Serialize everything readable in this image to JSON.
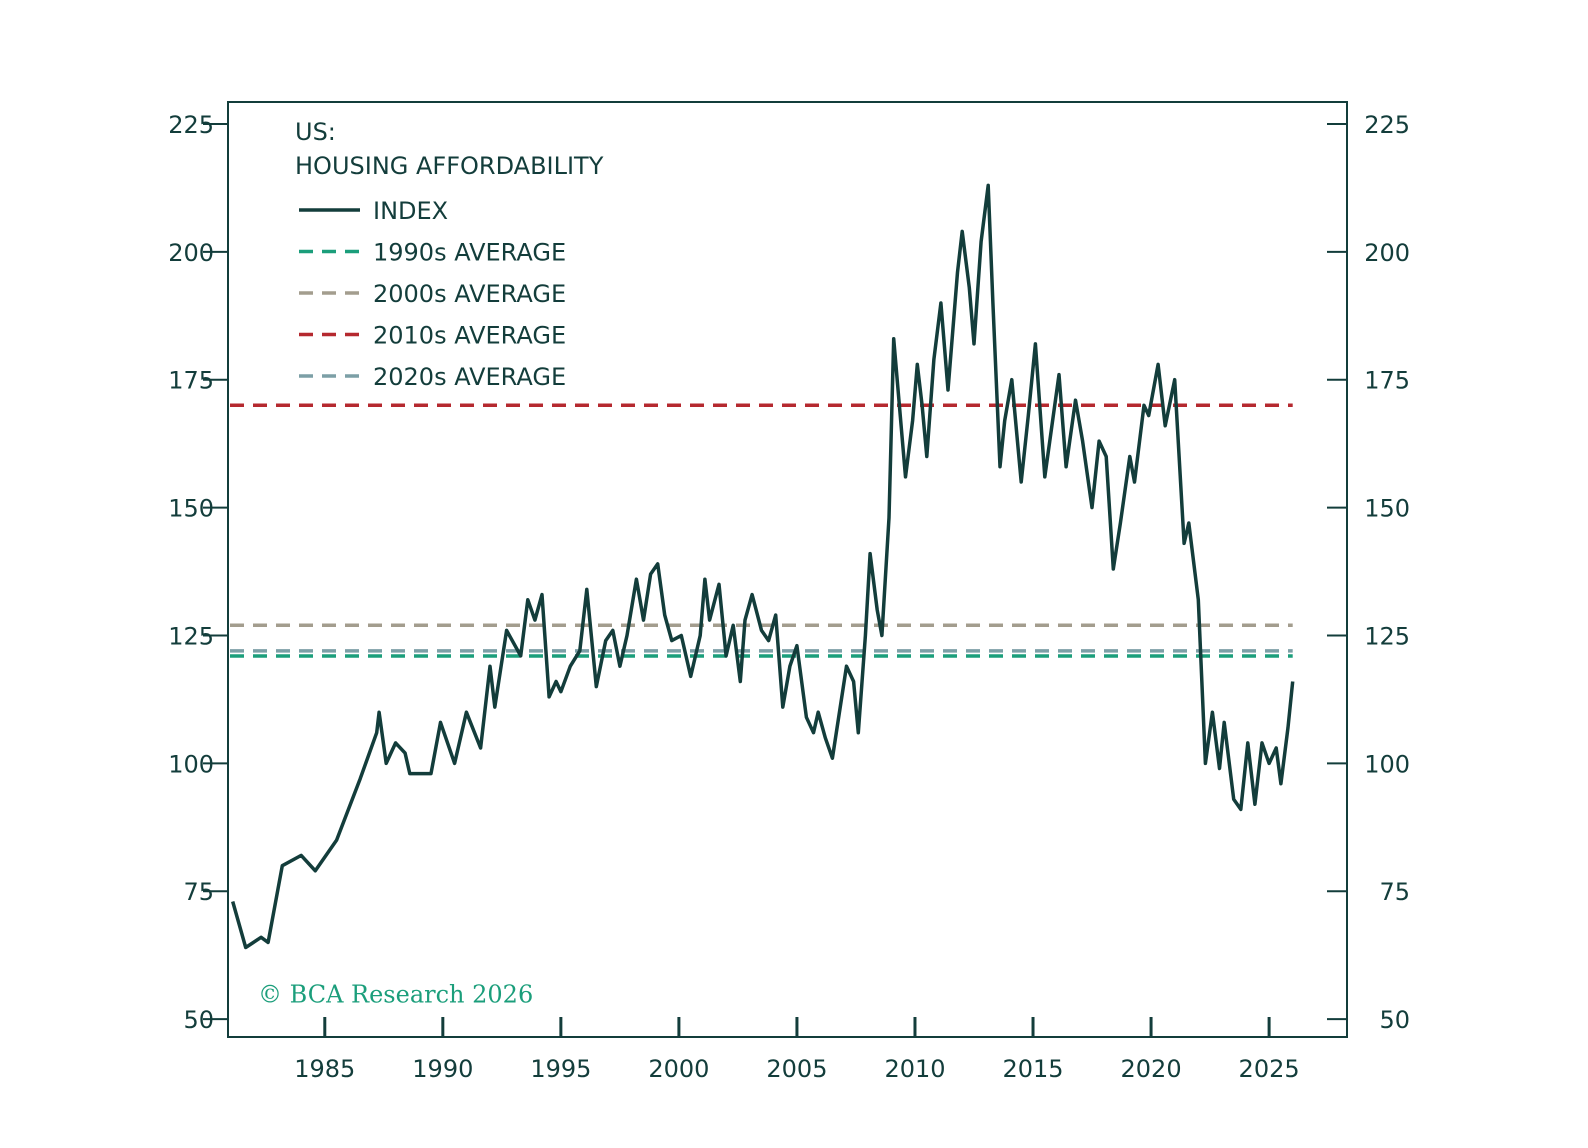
{
  "chart_data": {
    "type": "line",
    "title": "US:",
    "subtitle": "HOUSING AFFORDABILITY",
    "annotation": "© BCA Research 2026",
    "xlim": [
      1980.9,
      2028.3
    ],
    "xticks": [
      1985,
      1990,
      1995,
      2000,
      2005,
      2010,
      2015,
      2020,
      2025
    ],
    "ylim": [
      46.5,
      229.3
    ],
    "yticks": [
      50,
      75,
      100,
      125,
      150,
      175,
      200,
      225
    ],
    "y2lim": [
      46.5,
      229.3
    ],
    "y2ticks": [
      50,
      75,
      100,
      125,
      150,
      175,
      200,
      225
    ],
    "x": [
      1981.1,
      1981.65,
      1982.3,
      1982.6,
      1983.2,
      1984.0,
      1984.6,
      1985.5,
      1986.5,
      1987.2,
      1987.3,
      1987.6,
      1988.0,
      1988.4,
      1988.6,
      1989.5,
      1989.9,
      1990.5,
      1991.0,
      1991.6,
      1992.0,
      1992.2,
      1992.7,
      1993.3,
      1993.6,
      1993.9,
      1994.2,
      1994.5,
      1994.8,
      1995.0,
      1995.4,
      1995.8,
      1996.1,
      1996.5,
      1996.9,
      1997.2,
      1997.5,
      1997.8,
      1998.2,
      1998.5,
      1998.8,
      1999.1,
      1999.4,
      1999.7,
      2000.1,
      2000.5,
      2000.9,
      2001.1,
      2001.3,
      2001.7,
      2002.0,
      2002.3,
      2002.6,
      2002.8,
      2003.1,
      2003.5,
      2003.8,
      2004.1,
      2004.4,
      2004.7,
      2005.0,
      2005.4,
      2005.7,
      2005.9,
      2006.2,
      2006.5,
      2007.1,
      2007.4,
      2007.6,
      2007.9,
      2008.1,
      2008.4,
      2008.6,
      2008.9,
      2009.1,
      2009.3,
      2009.6,
      2009.9,
      2010.1,
      2010.3,
      2010.5,
      2010.8,
      2011.1,
      2011.4,
      2011.8,
      2012.0,
      2012.3,
      2012.5,
      2012.8,
      2013.1,
      2013.3,
      2013.6,
      2013.8,
      2014.1,
      2014.5,
      2014.8,
      2015.1,
      2015.5,
      2015.8,
      2016.1,
      2016.4,
      2016.8,
      2017.1,
      2017.5,
      2017.8,
      2018.1,
      2018.4,
      2018.7,
      2019.1,
      2019.3,
      2019.7,
      2019.9,
      2020.3,
      2020.6,
      2021.0,
      2021.4,
      2021.6,
      2022.0,
      2022.3,
      2022.6,
      2022.9,
      2023.1,
      2023.5,
      2023.8,
      2024.1,
      2024.4,
      2024.7,
      2025.0,
      2025.3,
      2025.5,
      2025.8,
      2026.0
    ],
    "series": [
      {
        "name": "INDEX",
        "color": "#133d3b",
        "values": [
          73,
          64,
          66,
          65,
          80,
          82,
          79,
          85,
          97,
          106,
          110,
          100,
          104,
          102,
          98,
          98,
          108,
          100,
          110,
          103,
          119,
          111,
          126,
          121,
          132,
          128,
          133,
          113,
          116,
          114,
          119,
          122,
          134,
          115,
          124,
          126,
          119,
          125,
          136,
          128,
          137,
          139,
          129,
          124,
          125,
          117,
          125,
          136,
          128,
          135,
          121,
          127,
          116,
          128,
          133,
          126,
          124,
          129,
          111,
          119,
          123,
          109,
          106,
          110,
          105,
          101,
          119,
          116,
          106,
          125,
          141,
          130,
          125,
          148,
          183,
          172,
          156,
          167,
          178,
          170,
          160,
          179,
          190,
          173,
          196,
          204,
          193,
          182,
          202,
          213,
          190,
          158,
          167,
          175,
          155,
          168,
          182,
          156,
          166,
          176,
          158,
          171,
          163,
          150,
          163,
          160,
          138,
          147,
          160,
          155,
          170,
          168,
          178,
          166,
          175,
          143,
          147,
          132,
          100,
          110,
          99,
          108,
          93,
          91,
          104,
          92,
          104,
          100,
          103,
          96,
          107,
          116
        ]
      }
    ],
    "hlines": [
      {
        "name": "1990s AVERAGE",
        "color": "#1b9e7b",
        "value": 121
      },
      {
        "name": "2000s AVERAGE",
        "color": "#a39d8e",
        "value": 127
      },
      {
        "name": "2010s AVERAGE",
        "color": "#b5292f",
        "value": 170
      },
      {
        "name": "2020s AVERAGE",
        "color": "#7c9fa6",
        "value": 122
      }
    ]
  }
}
